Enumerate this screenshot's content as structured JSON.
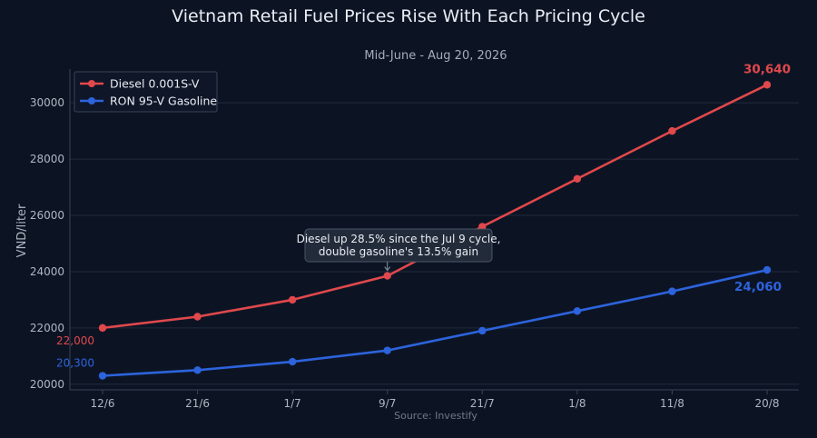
{
  "chart_data": {
    "type": "line",
    "title": "Vietnam Retail Fuel Prices Rise With Each Pricing Cycle",
    "subtitle": "Mid-June - Aug 20, 2026",
    "ylabel": "VND/liter",
    "xlabel": "",
    "source": "Source: Investify",
    "categories": [
      "12/6",
      "21/6",
      "1/7",
      "9/7",
      "21/7",
      "1/8",
      "11/8",
      "20/8"
    ],
    "ylim": [
      19800,
      31200
    ],
    "yticks": [
      20000,
      22000,
      24000,
      26000,
      28000,
      30000
    ],
    "grid": true,
    "legend_position": "top-left",
    "series": [
      {
        "name": "Diesel 0.001S-V",
        "color": "#e0484c",
        "values": [
          22000,
          22400,
          23000,
          23850,
          25600,
          27300,
          29000,
          30640
        ],
        "start_label": "22,000",
        "end_label": "30,640"
      },
      {
        "name": "RON 95-V Gasoline",
        "color": "#2d63dc",
        "values": [
          20300,
          20500,
          20800,
          21200,
          21900,
          22600,
          23300,
          24060
        ],
        "start_label": "20,300",
        "end_label": "24,060"
      }
    ],
    "annotation": {
      "lines": [
        "Diesel up 28.5% since the Jul 9 cycle,",
        "double gasoline's 13.5% gain"
      ],
      "category": "9/7",
      "series": 0
    }
  }
}
